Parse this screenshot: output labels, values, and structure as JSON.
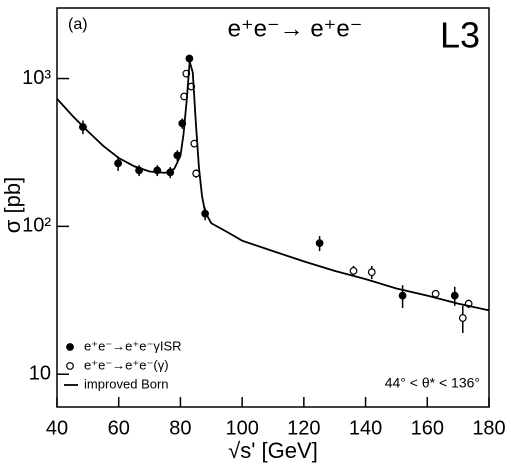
{
  "chart_data": {
    "type": "scatter",
    "title": "e⁺e⁻→ e⁺e⁻",
    "panel_label": "(a)",
    "experiment": "L3",
    "annotation": "44° < θ* < 136°",
    "x_label": "√s'  [GeV]",
    "y_label": "σ  [pb]",
    "xlim": [
      40,
      180
    ],
    "xticks": [
      40,
      60,
      80,
      100,
      120,
      140,
      160,
      180
    ],
    "ylim": [
      6,
      3000
    ],
    "yscale": "log",
    "yticks": [
      10,
      {
        "value": 100,
        "label": "10²"
      },
      {
        "value": 1000,
        "label": "10³"
      }
    ],
    "legend": "lower left",
    "series": [
      {
        "name": "e⁺e⁻→e⁺e⁻γISR",
        "marker": "filled",
        "color": "#000000",
        "x": [
          48.4,
          59.8,
          66.6,
          72.5,
          76.7,
          79,
          80.6,
          82.9,
          88,
          125.1,
          152,
          168.9
        ],
        "values": [
          470,
          267,
          239,
          239,
          232,
          302,
          497,
          1365,
          122,
          77,
          34,
          34
        ],
        "errors": [
          50,
          30,
          20,
          20,
          20,
          25,
          40,
          80,
          12,
          9,
          6,
          5
        ]
      },
      {
        "name": "e⁺e⁻→e⁺e⁻(γ)",
        "marker": "open",
        "color": "#000000",
        "x": [
          81.2,
          81.9,
          83.5,
          84.5,
          85.1,
          136.1,
          142,
          162.7,
          171.5,
          173.4
        ],
        "values": [
          756,
          1080,
          883,
          363,
          228,
          50,
          49,
          35,
          24,
          30
        ],
        "errors": [
          40,
          60,
          50,
          20,
          15,
          4,
          5,
          2,
          5,
          2
        ]
      },
      {
        "name": "improved Born",
        "marker": "line",
        "color": "#000000",
        "x": [
          40,
          45,
          50,
          55,
          60,
          65,
          70,
          75,
          78,
          80,
          81,
          82,
          83,
          84,
          85,
          86,
          87,
          88,
          90,
          95,
          100,
          110,
          120,
          130,
          140,
          150,
          160,
          170,
          180
        ],
        "values": [
          730,
          560,
          440,
          350,
          290,
          255,
          235,
          230,
          245,
          300,
          420,
          700,
          1300,
          1100,
          500,
          250,
          160,
          125,
          105,
          92,
          80,
          68,
          58,
          50,
          44,
          38,
          34,
          30,
          27
        ]
      }
    ]
  }
}
